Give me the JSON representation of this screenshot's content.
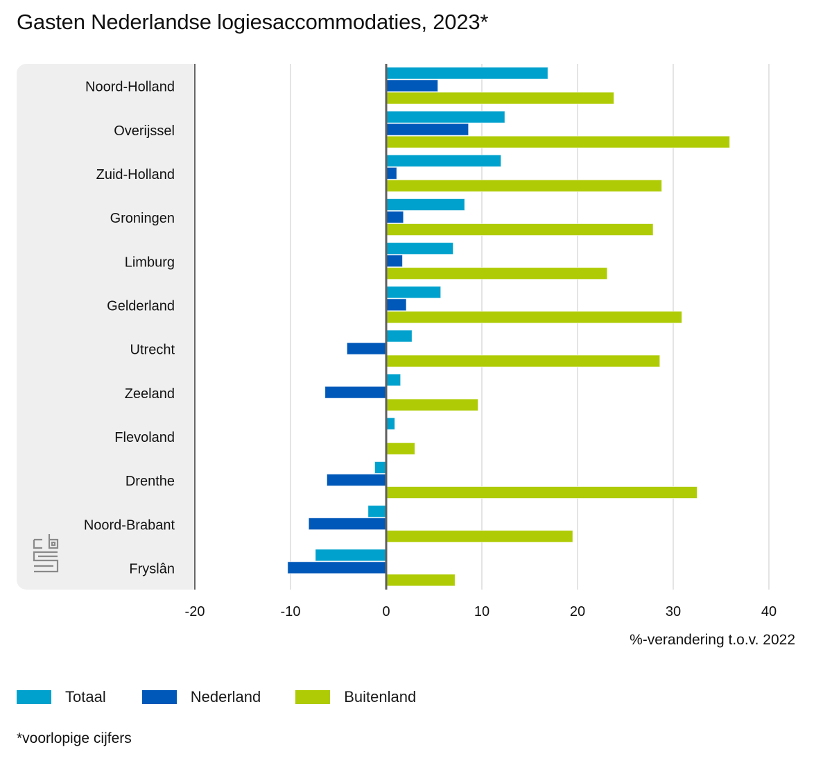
{
  "title": "Gasten Nederlandse logiesaccommodaties, 2023*",
  "footnote": "*voorlopige cijfers",
  "logo": "cbs-logo-icon",
  "chart_data": {
    "type": "bar",
    "orientation": "horizontal",
    "title": "Gasten Nederlandse logiesaccommodaties, 2023*",
    "xlabel": "%-verandering t.o.v. 2022",
    "ylabel": "",
    "xlim": [
      -20,
      40
    ],
    "xticks": [
      "-20",
      "-10",
      "0",
      "10",
      "20",
      "30",
      "40"
    ],
    "xtick_values": [
      -20,
      -10,
      0,
      10,
      20,
      30,
      40
    ],
    "grid": true,
    "legend_position": "bottom-left",
    "categories": [
      "Noord-Holland",
      "Overijssel",
      "Zuid-Holland",
      "Groningen",
      "Limburg",
      "Gelderland",
      "Utrecht",
      "Zeeland",
      "Flevoland",
      "Drenthe",
      "Noord-Brabant",
      "Fryslân"
    ],
    "series": [
      {
        "name": "Totaal",
        "color": "#00a1cd",
        "values": [
          16.9,
          12.4,
          12.0,
          8.2,
          7.0,
          5.7,
          2.7,
          1.5,
          0.9,
          -1.2,
          -1.9,
          -7.4
        ]
      },
      {
        "name": "Nederland",
        "color": "#0058b8",
        "values": [
          5.4,
          8.6,
          1.1,
          1.8,
          1.7,
          2.1,
          -4.1,
          -6.4,
          0.0,
          -6.2,
          -8.1,
          -10.3
        ]
      },
      {
        "name": "Buitenland",
        "color": "#afcb05",
        "values": [
          23.8,
          35.9,
          28.8,
          27.9,
          23.1,
          30.9,
          28.6,
          9.6,
          3.0,
          32.5,
          19.5,
          7.2
        ]
      }
    ]
  }
}
